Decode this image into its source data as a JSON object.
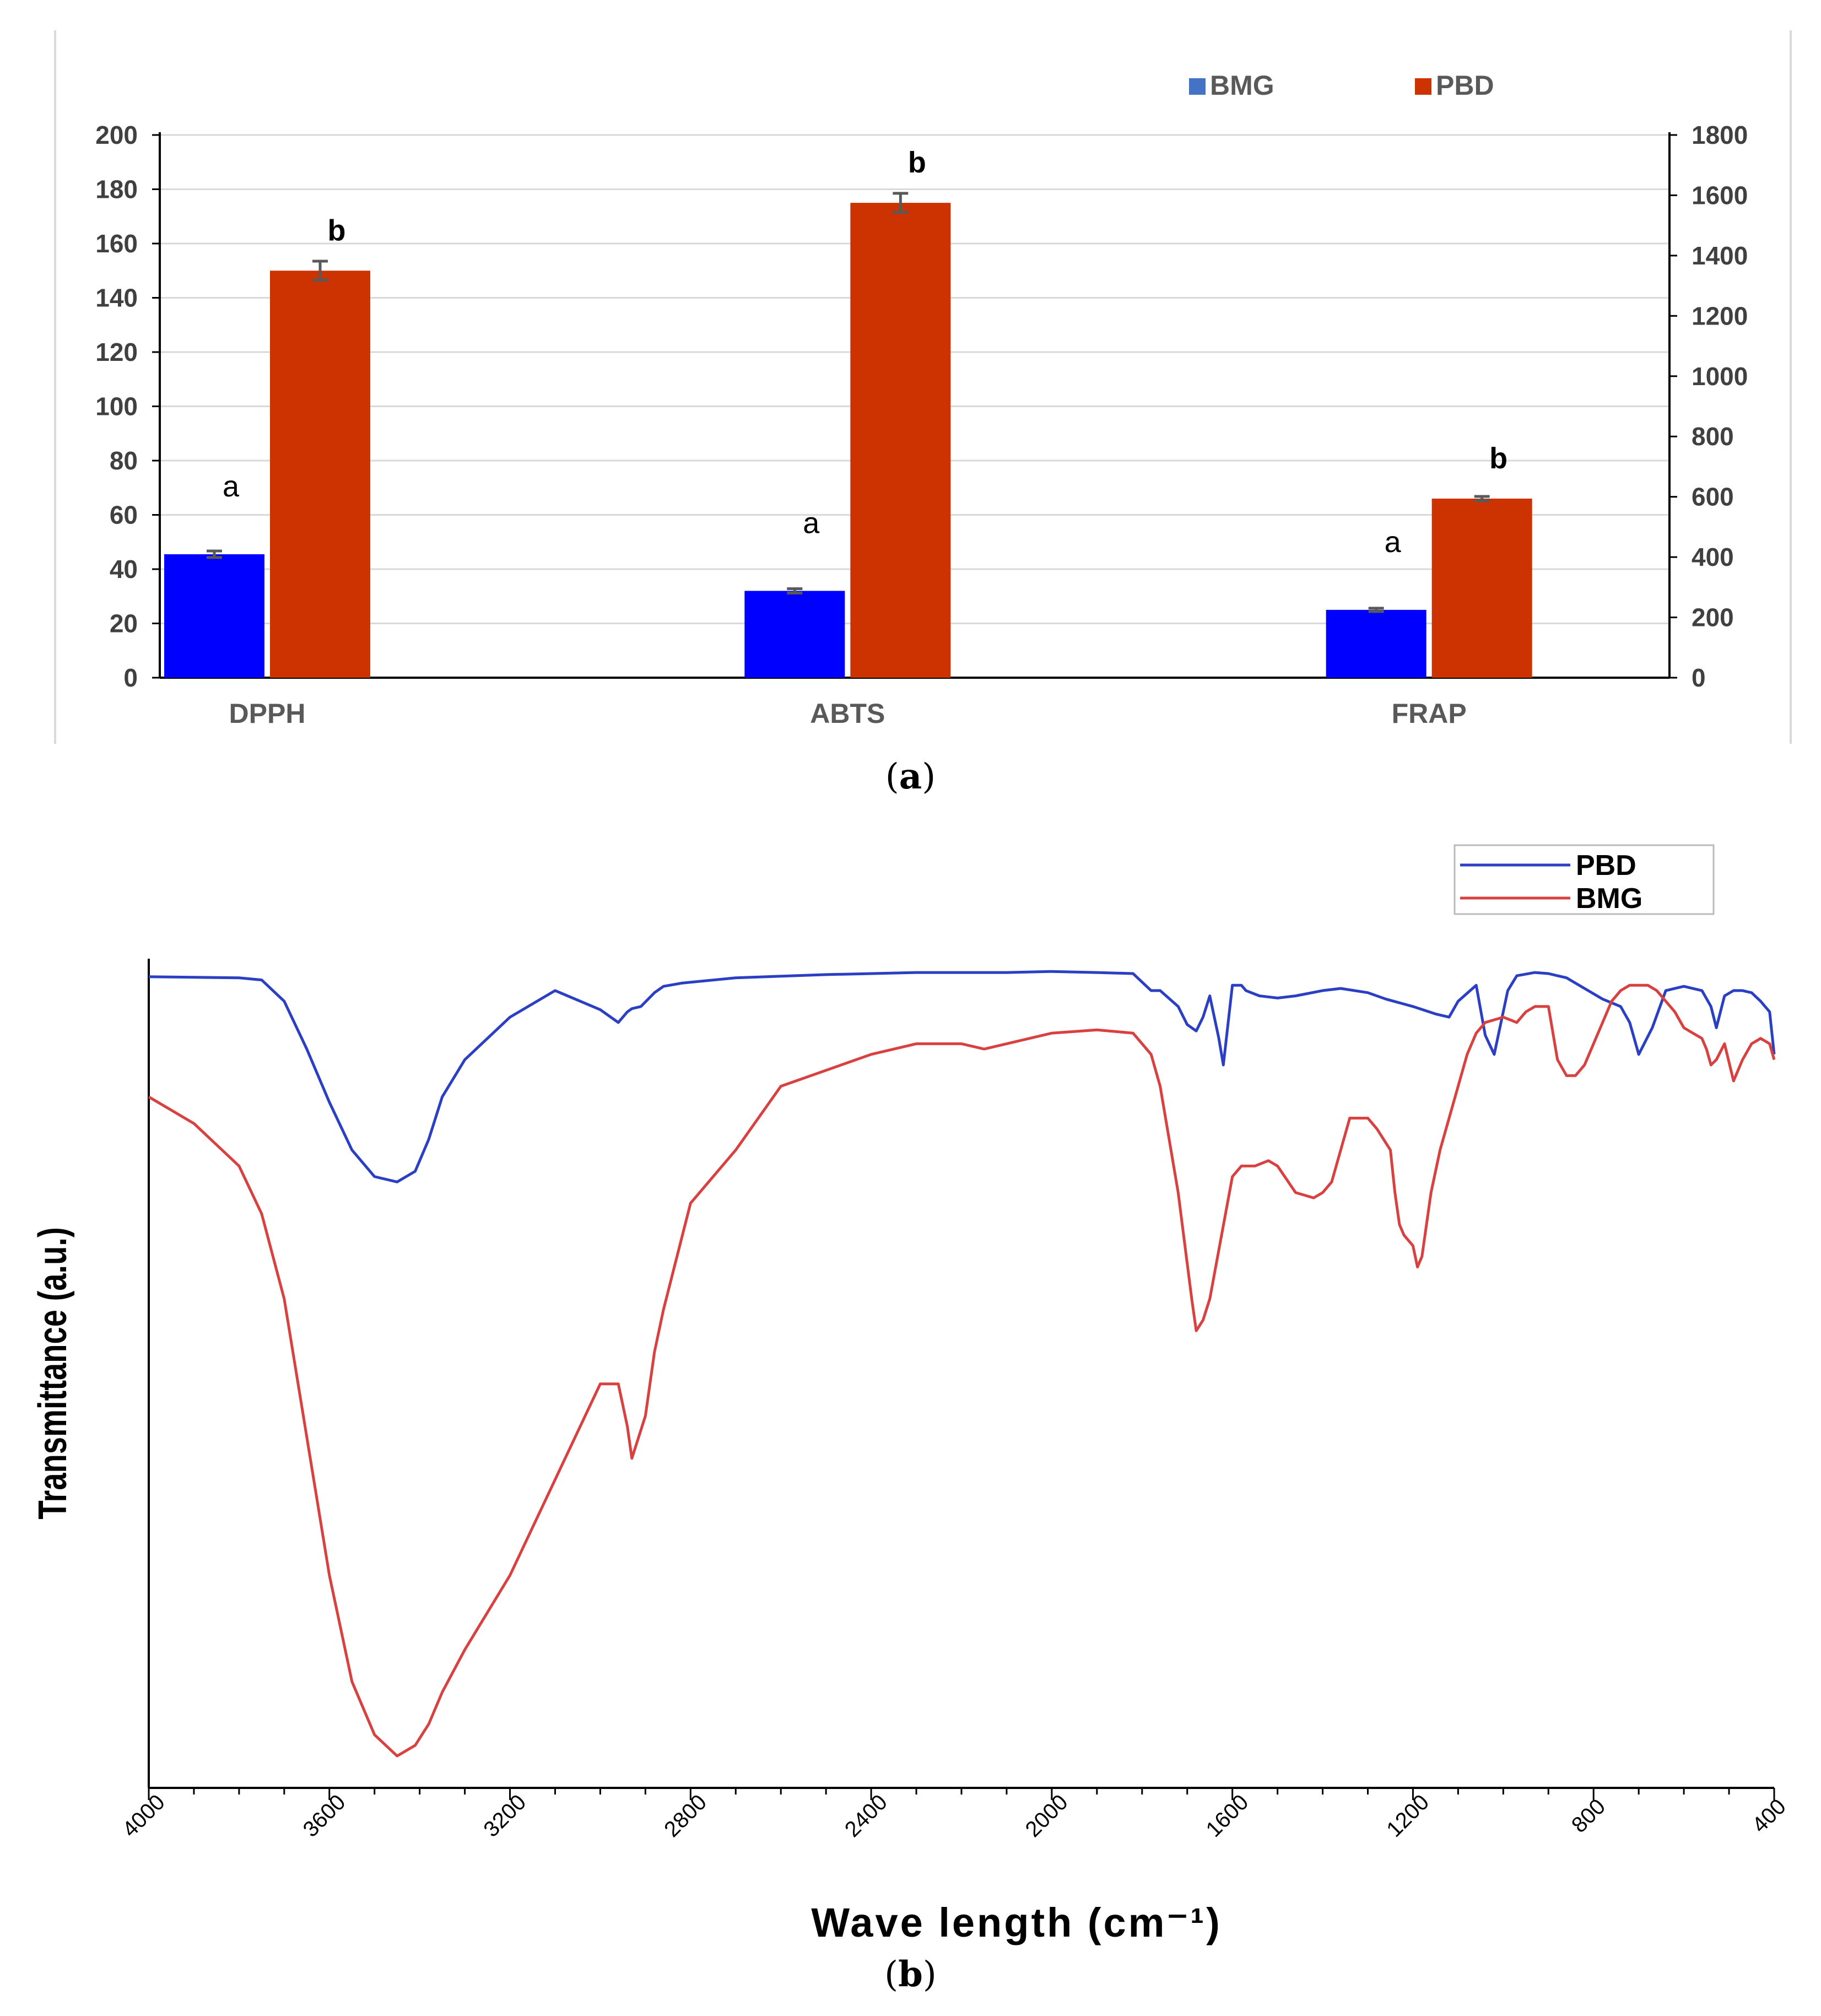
{
  "figure_a": {
    "caption_open": "(",
    "caption_letter": "a",
    "caption_close": ")",
    "chart_data": {
      "type": "bar",
      "categories": [
        "DPPH",
        "ABTS",
        "FRAP"
      ],
      "series": [
        {
          "name": "BMG",
          "color": "#0000ff",
          "legend_color": "#4472c4",
          "values": [
            45.5,
            32,
            25
          ],
          "error": [
            1.2,
            0.8,
            0.6
          ],
          "labels": [
            "a",
            "a",
            "a"
          ],
          "axis": "left"
        },
        {
          "name": "PBD",
          "color": "#cc3300",
          "legend_color": "#cc3300",
          "values": [
            150,
            175,
            66
          ],
          "error": [
            3.5,
            3.5,
            0.8
          ],
          "labels": [
            "b",
            "b",
            "b"
          ],
          "axis": "left"
        }
      ],
      "ylim_left": [
        0,
        200
      ],
      "yticks_left": [
        0,
        20,
        40,
        60,
        80,
        100,
        120,
        140,
        160,
        180,
        200
      ],
      "ylim_right": [
        0,
        1800
      ],
      "yticks_right": [
        0,
        200,
        400,
        600,
        800,
        1000,
        1200,
        1400,
        1600,
        1800
      ],
      "grid": true,
      "legend_position": "top-right"
    }
  },
  "figure_b": {
    "caption_open": "(",
    "caption_letter": "b",
    "caption_close": ")",
    "chart_data": {
      "type": "line",
      "xlabel": "Wave length (cm⁻¹)",
      "ylabel": "Transmittance (a.u.)",
      "xlim": [
        4000,
        400
      ],
      "xticks": [
        4000,
        3600,
        3200,
        2800,
        2400,
        2000,
        1600,
        1200,
        800,
        400
      ],
      "yticks_shown": false,
      "legend_position": "top-right",
      "series": [
        {
          "name": "PBD",
          "color": "#2b3fc4",
          "x": [
            4000,
            3900,
            3800,
            3750,
            3700,
            3650,
            3600,
            3550,
            3500,
            3450,
            3410,
            3380,
            3350,
            3300,
            3200,
            3100,
            3000,
            2960,
            2940,
            2930,
            2910,
            2880,
            2860,
            2820,
            2700,
            2500,
            2300,
            2200,
            2100,
            2000,
            1900,
            1820,
            1780,
            1760,
            1720,
            1700,
            1680,
            1665,
            1650,
            1630,
            1620,
            1600,
            1580,
            1570,
            1540,
            1500,
            1460,
            1400,
            1360,
            1300,
            1260,
            1200,
            1150,
            1120,
            1100,
            1060,
            1040,
            1020,
            990,
            970,
            930,
            900,
            880,
            860,
            820,
            780,
            740,
            720,
            700,
            670,
            640,
            600,
            560,
            540,
            528,
            510,
            490,
            470,
            450,
            430,
            410,
            405,
            400
          ],
          "y": [
            3,
            2.5,
            2,
            0,
            -20,
            -65,
            -115,
            -160,
            -185,
            -190,
            -180,
            -150,
            -110,
            -75,
            -35,
            -10,
            -28,
            -40,
            -30,
            -27,
            -25,
            -12,
            -6,
            -3,
            2,
            5,
            7,
            7,
            7,
            8,
            7,
            6,
            -10,
            -10,
            -25,
            -42,
            -48,
            -35,
            -15,
            -55,
            -80,
            -5,
            -5,
            -10,
            -15,
            -17,
            -15,
            -10,
            -8,
            -12,
            -18,
            -25,
            -32,
            -35,
            -20,
            -5,
            -52,
            -70,
            -10,
            4,
            7,
            6,
            4,
            2,
            -8,
            -18,
            -25,
            -40,
            -70,
            -45,
            -10,
            -6,
            -10,
            -25,
            -45,
            -15,
            -10,
            -10,
            -12,
            -20,
            -30,
            -50,
            -70
          ]
        },
        {
          "name": "BMG",
          "color": "#d94040",
          "x": [
            4000,
            3900,
            3800,
            3750,
            3700,
            3650,
            3600,
            3550,
            3500,
            3450,
            3410,
            3380,
            3350,
            3300,
            3200,
            3100,
            3000,
            2960,
            2940,
            2930,
            2900,
            2880,
            2860,
            2800,
            2700,
            2600,
            2400,
            2300,
            2200,
            2150,
            2100,
            2000,
            1900,
            1820,
            1780,
            1760,
            1720,
            1690,
            1680,
            1665,
            1650,
            1600,
            1580,
            1570,
            1550,
            1520,
            1500,
            1460,
            1420,
            1400,
            1380,
            1360,
            1340,
            1300,
            1280,
            1250,
            1240,
            1230,
            1220,
            1200,
            1190,
            1180,
            1170,
            1160,
            1140,
            1120,
            1100,
            1080,
            1060,
            1040,
            1000,
            970,
            950,
            930,
            900,
            880,
            860,
            840,
            820,
            800,
            780,
            760,
            740,
            720,
            700,
            680,
            660,
            640,
            620,
            600,
            580,
            560,
            550,
            540,
            528,
            510,
            490,
            470,
            450,
            430,
            410,
            400
          ],
          "y": [
            -110,
            -135,
            -175,
            -220,
            -300,
            -430,
            -560,
            -660,
            -710,
            -730,
            -720,
            -700,
            -670,
            -630,
            -560,
            -470,
            -380,
            -380,
            -420,
            -450,
            -410,
            -350,
            -310,
            -210,
            -160,
            -100,
            -70,
            -60,
            -60,
            -65,
            -60,
            -50,
            -47,
            -50,
            -70,
            -100,
            -200,
            -300,
            -330,
            -320,
            -300,
            -185,
            -175,
            -175,
            -175,
            -170,
            -175,
            -200,
            -205,
            -200,
            -190,
            -160,
            -130,
            -130,
            -140,
            -160,
            -200,
            -230,
            -240,
            -250,
            -270,
            -260,
            -230,
            -200,
            -160,
            -130,
            -100,
            -70,
            -50,
            -40,
            -35,
            -40,
            -30,
            -25,
            -25,
            -75,
            -90,
            -90,
            -80,
            -60,
            -40,
            -20,
            -10,
            -5,
            -5,
            -5,
            -10,
            -20,
            -30,
            -45,
            -50,
            -55,
            -65,
            -80,
            -75,
            -60,
            -95,
            -75,
            -60,
            -55,
            -60,
            -75
          ]
        }
      ]
    }
  }
}
